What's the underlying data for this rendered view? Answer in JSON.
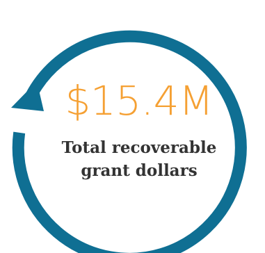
{
  "stat": {
    "amount": "$15.4M",
    "caption_line1": "Total recoverable",
    "caption_line2": "grant dollars"
  },
  "colors": {
    "ring": "#0f6f93",
    "amount": "#f5a033",
    "caption": "#333333"
  },
  "icon": "circular-arrow-icon"
}
